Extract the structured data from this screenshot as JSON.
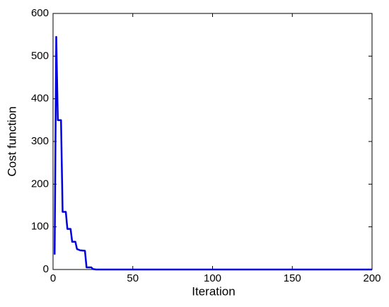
{
  "chart_data": {
    "type": "line",
    "x_label": "Iteration",
    "y_label": "Cost function",
    "x": [
      1,
      2,
      3,
      5,
      6,
      8,
      9,
      11,
      12,
      14,
      15,
      17,
      20,
      21,
      24,
      25,
      27,
      200
    ],
    "series": [
      {
        "color": "#0000dd",
        "values": [
          35,
          545,
          350,
          350,
          135,
          135,
          95,
          95,
          65,
          65,
          48,
          45,
          44,
          5,
          5,
          1,
          0,
          0
        ]
      }
    ],
    "xlim": [
      0,
      200
    ],
    "xticks": [
      0,
      50,
      100,
      150,
      200
    ],
    "ylim": [
      0,
      600
    ],
    "yticks": [
      0,
      100,
      200,
      300,
      400,
      500,
      600
    ]
  }
}
